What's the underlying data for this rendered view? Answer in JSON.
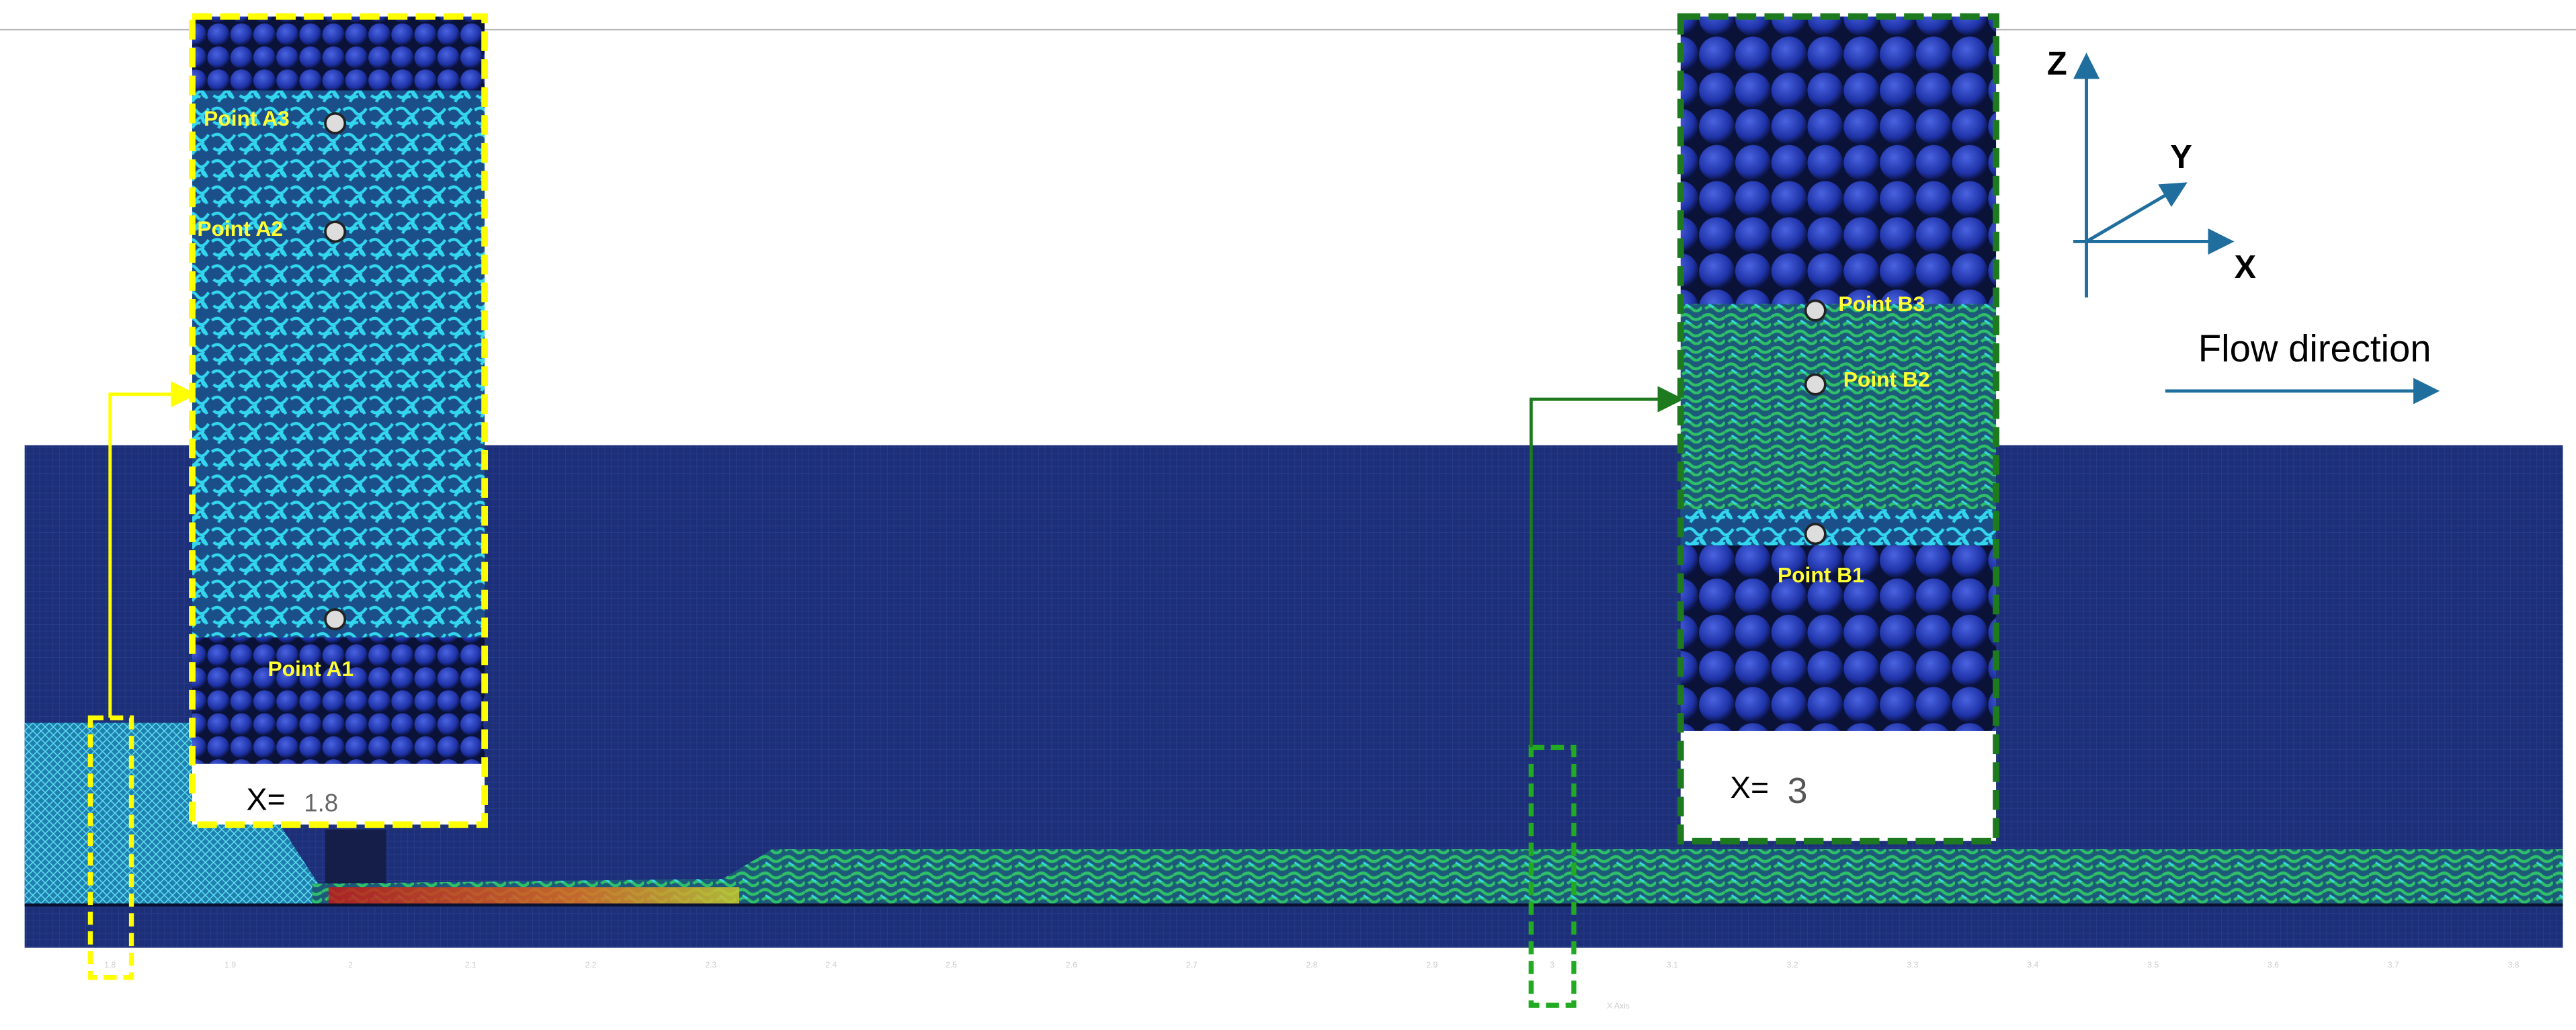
{
  "points": {
    "a3": "Point A3",
    "a2": "Point A2",
    "a1": "Point A1",
    "b3": "Point B3",
    "b2": "Point B2",
    "b1": "Point B1"
  },
  "insets": {
    "left": {
      "prefix": "X=",
      "value": "1.8"
    },
    "right": {
      "prefix": "X=",
      "value": "3"
    }
  },
  "axes_icon": {
    "z": "Z",
    "y": "Y",
    "x": "X"
  },
  "flow_label": "Flow direction",
  "axis": {
    "title": "X Axis",
    "ticks": [
      "1.8",
      "1.9",
      "2",
      "2.1",
      "2.2",
      "2.3",
      "2.4",
      "2.5",
      "2.6",
      "2.7",
      "2.8",
      "2.9",
      "3",
      "3.1",
      "3.2",
      "3.3",
      "3.4",
      "3.5",
      "3.6",
      "3.7",
      "3.8"
    ]
  }
}
